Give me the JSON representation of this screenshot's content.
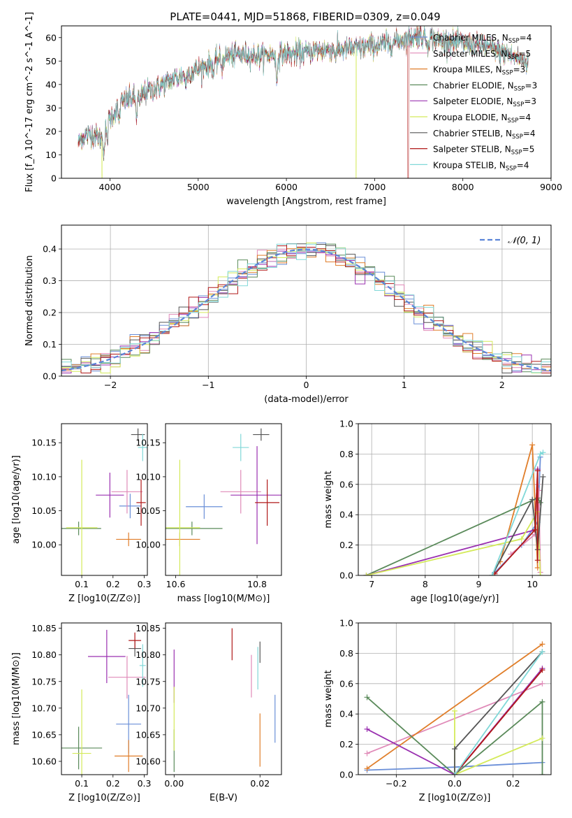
{
  "figure": {
    "title": "PLATE=0441, MJD=51868, FIBERID=0309, z=0.049"
  },
  "colors": {
    "Chabrier MILES": "#6a8fd8",
    "Salpeter MILES": "#e08ab8",
    "Kroupa MILES": "#e07e2a",
    "Chabrier ELODIE": "#5a8a5a",
    "Salpeter ELODIE": "#9a30b0",
    "Kroupa ELODIE": "#d4ea5a",
    "Chabrier STELIB": "#555555",
    "Salpeter STELIB": "#b01818",
    "Kroupa STELIB": "#80d8d8"
  },
  "chart_data": [
    {
      "id": "spectrum",
      "type": "line",
      "title": "PLATE=0441, MJD=51868, FIBERID=0309, z=0.049",
      "xlabel": "wavelength [Angstrom, rest frame]",
      "ylabel": "Flux [f_λ 10^-17 erg cm^-2 s^-1 A^-1]",
      "xlim": [
        3450,
        9000
      ],
      "ylim": [
        0,
        65
      ],
      "xticks": [
        4000,
        5000,
        6000,
        7000,
        8000,
        9000
      ],
      "yticks": [
        0,
        10,
        20,
        30,
        40,
        50,
        60
      ],
      "legend_placement": "right",
      "legend": [
        {
          "key": "Chabrier MILES",
          "label": "Chabrier MILES, N",
          "sub": "SSP",
          "tail": "=4"
        },
        {
          "key": "Salpeter MILES",
          "label": "Salpeter MILES, N",
          "sub": "SSP",
          "tail": "=5"
        },
        {
          "key": "Kroupa MILES",
          "label": "Kroupa MILES, N",
          "sub": "SSP",
          "tail": "=3"
        },
        {
          "key": "Chabrier ELODIE",
          "label": "Chabrier ELODIE, N",
          "sub": "SSP",
          "tail": "=3"
        },
        {
          "key": "Salpeter ELODIE",
          "label": "Salpeter ELODIE, N",
          "sub": "SSP",
          "tail": "=3"
        },
        {
          "key": "Kroupa ELODIE",
          "label": "Kroupa ELODIE, N",
          "sub": "SSP",
          "tail": "=4"
        },
        {
          "key": "Chabrier STELIB",
          "label": "Chabrier STELIB, N",
          "sub": "SSP",
          "tail": "=4"
        },
        {
          "key": "Salpeter STELIB",
          "label": "Salpeter STELIB, N",
          "sub": "SSP",
          "tail": "=5"
        },
        {
          "key": "Kroupa STELIB",
          "label": "Kroupa STELIB, N",
          "sub": "SSP",
          "tail": "=4"
        }
      ],
      "continuum": {
        "x": [
          3640,
          3700,
          3800,
          3900,
          3960,
          4050,
          4150,
          4300,
          4500,
          4700,
          4900,
          5100,
          5300,
          5500,
          5700,
          5900,
          6100,
          6300,
          6500,
          6700,
          6900,
          7100,
          7300,
          7500,
          7700,
          7900,
          8100,
          8300,
          8500,
          8700
        ],
        "y": [
          15,
          18,
          19,
          17,
          24,
          28,
          33,
          35,
          38,
          42,
          45,
          48,
          52,
          53,
          52,
          53,
          53,
          54,
          55,
          55,
          56,
          57,
          59,
          61,
          59,
          58,
          57,
          56,
          53,
          50
        ]
      },
      "absorption_lines": [
        {
          "x": 3933,
          "depth": 10
        },
        {
          "x": 3968,
          "depth": 9
        },
        {
          "x": 4102,
          "depth": 6
        },
        {
          "x": 4300,
          "depth": 8
        },
        {
          "x": 4340,
          "depth": 5
        },
        {
          "x": 4861,
          "depth": 4
        },
        {
          "x": 5175,
          "depth": 5
        },
        {
          "x": 5270,
          "depth": 4
        },
        {
          "x": 5890,
          "depth": 12
        },
        {
          "x": 6563,
          "depth": 3
        },
        {
          "x": 7600,
          "depth": 3
        }
      ],
      "dropouts": [
        {
          "x": 3910,
          "key": "Kroupa ELODIE"
        },
        {
          "x": 6790,
          "key": "Kroupa ELODIE"
        },
        {
          "x": 7380,
          "key": "Salpeter STELIB"
        }
      ]
    },
    {
      "id": "residual-histogram",
      "type": "histogram",
      "xlabel": "(data-model)/error",
      "ylabel": "Normed distribution",
      "xlim": [
        -2.5,
        2.5
      ],
      "ylim": [
        0,
        0.475
      ],
      "xticks": [
        -2,
        -1,
        0,
        1,
        2
      ],
      "yticks": [
        0.0,
        0.1,
        0.2,
        0.3,
        0.4
      ],
      "grid": true,
      "bin_width": 0.1,
      "reference_curve": {
        "label": "N(0,1)",
        "style": "dashed",
        "color": "#5b85d8"
      },
      "legend_placement": "top-right"
    },
    {
      "id": "Z-vs-age",
      "type": "errorbar",
      "xlabel": "Z [log10(Z/Z⊙)]",
      "ylabel": "age [log10(age/yr)]",
      "xlim": [
        0.035,
        0.31
      ],
      "ylim": [
        9.955,
        10.178
      ],
      "xticks": [
        0.1,
        0.2,
        0.3
      ],
      "yticks": [
        10.0,
        10.05,
        10.1,
        10.15
      ],
      "points": [
        {
          "key": "Chabrier MILES",
          "x": 0.255,
          "y": 10.057,
          "xerr": 0.035,
          "yerr": 0.018
        },
        {
          "key": "Salpeter MILES",
          "x": 0.245,
          "y": 10.078,
          "xerr": 0.05,
          "yerr": 0.032
        },
        {
          "key": "Kroupa MILES",
          "x": 0.25,
          "y": 10.008,
          "xerr": 0.04,
          "yerr": 0.01
        },
        {
          "key": "Chabrier ELODIE",
          "x": 0.09,
          "y": 10.024,
          "xerr": 0.072,
          "yerr": 0.01
        },
        {
          "key": "Salpeter ELODIE",
          "x": 0.19,
          "y": 10.073,
          "xerr": 0.045,
          "yerr": 0.033
        },
        {
          "key": "Kroupa ELODIE",
          "x": 0.1,
          "y": 10.025,
          "xerr": 0.05,
          "yerr": 0.1
        },
        {
          "key": "Chabrier STELIB",
          "x": 0.28,
          "y": 10.162,
          "xerr": 0.022,
          "yerr": 0.009
        },
        {
          "key": "Salpeter STELIB",
          "x": 0.29,
          "y": 10.062,
          "xerr": 0.015,
          "yerr": 0.034
        },
        {
          "key": "Kroupa STELIB",
          "x": 0.295,
          "y": 10.143,
          "xerr": 0.015,
          "yerr": 0.02
        }
      ]
    },
    {
      "id": "mass-vs-age",
      "type": "errorbar",
      "xlabel": "mass [log10(M/M⊙)]",
      "ylabel": "",
      "xlim": [
        10.575,
        10.86
      ],
      "ylim": [
        9.955,
        10.178
      ],
      "xticks": [
        10.6,
        10.8
      ],
      "yticks": [
        10.0,
        10.05,
        10.1,
        10.15
      ],
      "points": [
        {
          "key": "Chabrier MILES",
          "x": 10.67,
          "y": 10.056,
          "xerr": 0.045,
          "yerr": 0.018
        },
        {
          "key": "Salpeter MILES",
          "x": 10.76,
          "y": 10.078,
          "xerr": 0.05,
          "yerr": 0.032
        },
        {
          "key": "Kroupa MILES",
          "x": 10.61,
          "y": 10.008,
          "xerr": 0.05,
          "yerr": 0.01
        },
        {
          "key": "Chabrier ELODIE",
          "x": 10.64,
          "y": 10.024,
          "xerr": 0.075,
          "yerr": 0.01
        },
        {
          "key": "Salpeter ELODIE",
          "x": 10.8,
          "y": 10.073,
          "xerr": 0.065,
          "yerr": 0.072
        },
        {
          "key": "Kroupa ELODIE",
          "x": 10.61,
          "y": 10.025,
          "xerr": 0.05,
          "yerr": 0.1
        },
        {
          "key": "Chabrier STELIB",
          "x": 10.81,
          "y": 10.162,
          "xerr": 0.02,
          "yerr": 0.009
        },
        {
          "key": "Salpeter STELIB",
          "x": 10.825,
          "y": 10.062,
          "xerr": 0.03,
          "yerr": 0.034
        },
        {
          "key": "Kroupa STELIB",
          "x": 10.76,
          "y": 10.143,
          "xerr": 0.02,
          "yerr": 0.02
        }
      ]
    },
    {
      "id": "age-vs-mass-weight",
      "type": "line",
      "xlabel": "age [log10(age/yr)]",
      "ylabel": "mass weight",
      "xlim": [
        6.75,
        10.35
      ],
      "ylim": [
        0,
        1.0
      ],
      "xticks": [
        7,
        8,
        9,
        10
      ],
      "yticks": [
        0.0,
        0.2,
        0.4,
        0.6,
        0.8,
        1.0
      ],
      "grid": true,
      "series": [
        {
          "key": "Chabrier MILES",
          "x": [
            9.3,
            9.8,
            10.1,
            10.15
          ],
          "y": [
            0.02,
            0.2,
            0.35,
            0.78
          ]
        },
        {
          "key": "Salpeter MILES",
          "x": [
            9.6,
            10.05,
            10.1,
            10.15,
            10.12
          ],
          "y": [
            0.14,
            0.27,
            0.6,
            0.02,
            0.56
          ]
        },
        {
          "key": "Kroupa MILES",
          "x": [
            9.4,
            10.0,
            10.1
          ],
          "y": [
            0.09,
            0.86,
            0.05
          ]
        },
        {
          "key": "Chabrier ELODIE",
          "x": [
            6.9,
            10.1,
            10.15
          ],
          "y": [
            0.0,
            0.51,
            0.48
          ]
        },
        {
          "key": "Salpeter ELODIE",
          "x": [
            6.9,
            10.05,
            10.1
          ],
          "y": [
            0.0,
            0.3,
            0.7
          ]
        },
        {
          "key": "Kroupa ELODIE",
          "x": [
            6.9,
            9.8,
            10.1,
            10.15
          ],
          "y": [
            0.0,
            0.24,
            0.42,
            0.0
          ]
        },
        {
          "key": "Chabrier STELIB",
          "x": [
            9.25,
            10.0,
            10.1,
            10.2
          ],
          "y": [
            0.0,
            0.5,
            0.17,
            0.65
          ]
        },
        {
          "key": "Salpeter STELIB",
          "x": [
            9.3,
            10.05,
            10.1,
            10.1
          ],
          "y": [
            0.01,
            0.3,
            0.69,
            0.1
          ]
        },
        {
          "key": "Kroupa STELIB",
          "x": [
            9.25,
            10.15,
            10.2
          ],
          "y": [
            0.0,
            0.8,
            0.81
          ]
        }
      ]
    },
    {
      "id": "Z-vs-mass",
      "type": "errorbar",
      "xlabel": "Z [log10(Z/Z⊙)]",
      "ylabel": "mass [log10(M/M⊙)]",
      "xlim": [
        0.035,
        0.31
      ],
      "ylim": [
        10.575,
        10.86
      ],
      "xticks": [
        0.1,
        0.2,
        0.3
      ],
      "yticks": [
        10.6,
        10.65,
        10.7,
        10.75,
        10.8,
        10.85
      ],
      "points": [
        {
          "key": "Chabrier MILES",
          "x": 0.25,
          "y": 10.67,
          "xerr": 0.04,
          "yerr": 0.055
        },
        {
          "key": "Salpeter MILES",
          "x": 0.245,
          "y": 10.758,
          "xerr": 0.06,
          "yerr": 0.04
        },
        {
          "key": "Kroupa MILES",
          "x": 0.25,
          "y": 10.61,
          "xerr": 0.045,
          "yerr": 0.03
        },
        {
          "key": "Chabrier ELODIE",
          "x": 0.09,
          "y": 10.625,
          "xerr": 0.075,
          "yerr": 0.04
        },
        {
          "key": "Salpeter ELODIE",
          "x": 0.18,
          "y": 10.797,
          "xerr": 0.06,
          "yerr": 0.05
        },
        {
          "key": "Kroupa ELODIE",
          "x": 0.1,
          "y": 10.615,
          "xerr": 0.03,
          "yerr": 0.12
        },
        {
          "key": "Chabrier STELIB",
          "x": 0.27,
          "y": 10.812,
          "xerr": 0.02,
          "yerr": 0.015
        },
        {
          "key": "Salpeter STELIB",
          "x": 0.27,
          "y": 10.827,
          "xerr": 0.02,
          "yerr": 0.015
        },
        {
          "key": "Kroupa STELIB",
          "x": 0.295,
          "y": 10.78,
          "xerr": 0.01,
          "yerr": 0.04
        }
      ]
    },
    {
      "id": "ebv-vs-mass",
      "type": "errorbar",
      "xlabel": "E(B-V)",
      "ylabel": "",
      "xlim": [
        -0.002,
        0.025
      ],
      "ylim": [
        10.575,
        10.86
      ],
      "xticks": [
        0.0,
        0.02
      ],
      "yticks": [
        10.6,
        10.65,
        10.7,
        10.75,
        10.8,
        10.85
      ],
      "points": [
        {
          "key": "Chabrier MILES",
          "x": 0.0235,
          "y": 10.68,
          "xerr": 0.0,
          "yerr": 0.045
        },
        {
          "key": "Salpeter MILES",
          "x": 0.018,
          "y": 10.76,
          "xerr": 0.0,
          "yerr": 0.04
        },
        {
          "key": "Kroupa MILES",
          "x": 0.02,
          "y": 10.64,
          "xerr": 0.0,
          "yerr": 0.05
        },
        {
          "key": "Chabrier ELODIE",
          "x": 0.0,
          "y": 10.62,
          "xerr": 0.0,
          "yerr": 0.04
        },
        {
          "key": "Salpeter ELODIE",
          "x": 0.0,
          "y": 10.76,
          "xerr": 0.0,
          "yerr": 0.05
        },
        {
          "key": "Kroupa ELODIE",
          "x": 0.0,
          "y": 10.68,
          "xerr": 0.0,
          "yerr": 0.06
        },
        {
          "key": "Chabrier STELIB",
          "x": 0.02,
          "y": 10.805,
          "xerr": 0.0,
          "yerr": 0.02
        },
        {
          "key": "Salpeter STELIB",
          "x": 0.0135,
          "y": 10.82,
          "xerr": 0.0,
          "yerr": 0.03
        },
        {
          "key": "Kroupa STELIB",
          "x": 0.0195,
          "y": 10.775,
          "xerr": 0.0,
          "yerr": 0.04
        }
      ]
    },
    {
      "id": "Z-vs-mass-weight",
      "type": "line",
      "xlabel": "Z [log10(Z/Z⊙)]",
      "ylabel": "mass weight",
      "xlim": [
        -0.33,
        0.33
      ],
      "ylim": [
        0,
        1.0
      ],
      "xticks": [
        -0.2,
        0.0,
        0.2
      ],
      "yticks": [
        0.0,
        0.2,
        0.4,
        0.6,
        0.8,
        1.0
      ],
      "grid": true,
      "series": [
        {
          "key": "Chabrier MILES",
          "x": [
            -0.3,
            0.0,
            0.3
          ],
          "y": [
            0.03,
            0.05,
            0.08
          ]
        },
        {
          "key": "Salpeter MILES",
          "x": [
            -0.3,
            0.3
          ],
          "y": [
            0.14,
            0.6
          ]
        },
        {
          "key": "Kroupa MILES",
          "x": [
            -0.3,
            0.3
          ],
          "y": [
            0.04,
            0.86
          ]
        },
        {
          "key": "Chabrier ELODIE",
          "x": [
            -0.3,
            0.0,
            0.3,
            0.3
          ],
          "y": [
            0.51,
            0.0,
            0.48,
            0.0
          ]
        },
        {
          "key": "Salpeter ELODIE",
          "x": [
            -0.3,
            0.0,
            0.3
          ],
          "y": [
            0.3,
            0.0,
            0.7
          ]
        },
        {
          "key": "Kroupa ELODIE",
          "x": [
            0.0,
            0.0,
            0.3
          ],
          "y": [
            0.42,
            0.0,
            0.24
          ]
        },
        {
          "key": "Chabrier STELIB",
          "x": [
            0.0,
            0.0,
            0.3
          ],
          "y": [
            0.0,
            0.17,
            0.81
          ]
        },
        {
          "key": "Salpeter STELIB",
          "x": [
            0.0,
            0.3
          ],
          "y": [
            0.0,
            0.69
          ]
        },
        {
          "key": "Kroupa STELIB",
          "x": [
            0.0,
            0.3
          ],
          "y": [
            0.0,
            0.81
          ]
        }
      ]
    }
  ]
}
